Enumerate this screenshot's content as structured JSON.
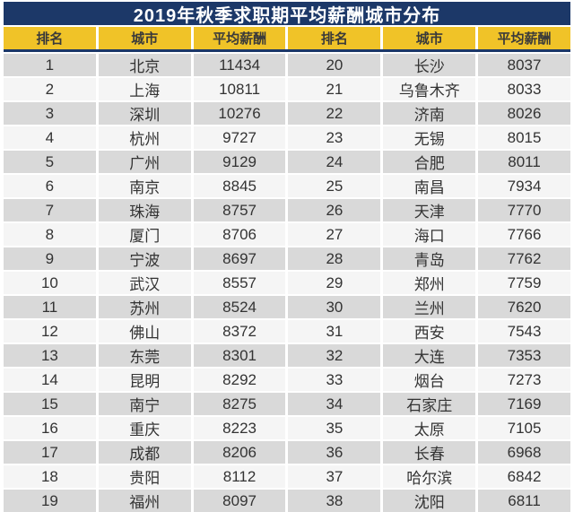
{
  "title": "2019年秋季求职期平均薪酬城市分布",
  "colors": {
    "title_bar_bg": "#1c3868",
    "title_text": "#ffffff",
    "header_bg": "#f0c328",
    "header_text": "#3a3a3a",
    "row_odd_bg": "#d9d9d9",
    "row_even_bg": "#f5f5f5",
    "grid_line": "#ffffff",
    "divider": "#1c3868",
    "cell_text": "#333333"
  },
  "table": {
    "columns": [
      "排名",
      "城市",
      "平均薪酬",
      "排名",
      "城市",
      "平均薪酬"
    ],
    "rows": [
      [
        "1",
        "北京",
        "11434",
        "20",
        "长沙",
        "8037"
      ],
      [
        "2",
        "上海",
        "10811",
        "21",
        "乌鲁木齐",
        "8033"
      ],
      [
        "3",
        "深圳",
        "10276",
        "22",
        "济南",
        "8026"
      ],
      [
        "4",
        "杭州",
        "9727",
        "23",
        "无锡",
        "8015"
      ],
      [
        "5",
        "广州",
        "9129",
        "24",
        "合肥",
        "8011"
      ],
      [
        "6",
        "南京",
        "8845",
        "25",
        "南昌",
        "7934"
      ],
      [
        "7",
        "珠海",
        "8757",
        "26",
        "天津",
        "7770"
      ],
      [
        "8",
        "厦门",
        "8706",
        "27",
        "海口",
        "7766"
      ],
      [
        "9",
        "宁波",
        "8697",
        "28",
        "青岛",
        "7762"
      ],
      [
        "10",
        "武汉",
        "8557",
        "29",
        "郑州",
        "7759"
      ],
      [
        "11",
        "苏州",
        "8524",
        "30",
        "兰州",
        "7620"
      ],
      [
        "12",
        "佛山",
        "8372",
        "31",
        "西安",
        "7543"
      ],
      [
        "13",
        "东莞",
        "8301",
        "32",
        "大连",
        "7353"
      ],
      [
        "14",
        "昆明",
        "8292",
        "33",
        "烟台",
        "7273"
      ],
      [
        "15",
        "南宁",
        "8275",
        "34",
        "石家庄",
        "7169"
      ],
      [
        "16",
        "重庆",
        "8223",
        "35",
        "太原",
        "7105"
      ],
      [
        "17",
        "成都",
        "8206",
        "36",
        "长春",
        "6968"
      ],
      [
        "18",
        "贵阳",
        "8112",
        "37",
        "哈尔滨",
        "6842"
      ],
      [
        "19",
        "福州",
        "8097",
        "38",
        "沈阳",
        "6811"
      ]
    ]
  },
  "chart_data": {
    "type": "table",
    "title": "2019年秋季求职期平均薪酬城市分布",
    "columns": [
      "排名",
      "城市",
      "平均薪酬"
    ],
    "entries": [
      {
        "rank": 1,
        "city": "北京",
        "salary": 11434
      },
      {
        "rank": 2,
        "city": "上海",
        "salary": 10811
      },
      {
        "rank": 3,
        "city": "深圳",
        "salary": 10276
      },
      {
        "rank": 4,
        "city": "杭州",
        "salary": 9727
      },
      {
        "rank": 5,
        "city": "广州",
        "salary": 9129
      },
      {
        "rank": 6,
        "city": "南京",
        "salary": 8845
      },
      {
        "rank": 7,
        "city": "珠海",
        "salary": 8757
      },
      {
        "rank": 8,
        "city": "厦门",
        "salary": 8706
      },
      {
        "rank": 9,
        "city": "宁波",
        "salary": 8697
      },
      {
        "rank": 10,
        "city": "武汉",
        "salary": 8557
      },
      {
        "rank": 11,
        "city": "苏州",
        "salary": 8524
      },
      {
        "rank": 12,
        "city": "佛山",
        "salary": 8372
      },
      {
        "rank": 13,
        "city": "东莞",
        "salary": 8301
      },
      {
        "rank": 14,
        "city": "昆明",
        "salary": 8292
      },
      {
        "rank": 15,
        "city": "南宁",
        "salary": 8275
      },
      {
        "rank": 16,
        "city": "重庆",
        "salary": 8223
      },
      {
        "rank": 17,
        "city": "成都",
        "salary": 8206
      },
      {
        "rank": 18,
        "city": "贵阳",
        "salary": 8112
      },
      {
        "rank": 19,
        "city": "福州",
        "salary": 8097
      },
      {
        "rank": 20,
        "city": "长沙",
        "salary": 8037
      },
      {
        "rank": 21,
        "city": "乌鲁木齐",
        "salary": 8033
      },
      {
        "rank": 22,
        "city": "济南",
        "salary": 8026
      },
      {
        "rank": 23,
        "city": "无锡",
        "salary": 8015
      },
      {
        "rank": 24,
        "city": "合肥",
        "salary": 8011
      },
      {
        "rank": 25,
        "city": "南昌",
        "salary": 7934
      },
      {
        "rank": 26,
        "city": "天津",
        "salary": 7770
      },
      {
        "rank": 27,
        "city": "海口",
        "salary": 7766
      },
      {
        "rank": 28,
        "city": "青岛",
        "salary": 7762
      },
      {
        "rank": 29,
        "city": "郑州",
        "salary": 7759
      },
      {
        "rank": 30,
        "city": "兰州",
        "salary": 7620
      },
      {
        "rank": 31,
        "city": "西安",
        "salary": 7543
      },
      {
        "rank": 32,
        "city": "大连",
        "salary": 7353
      },
      {
        "rank": 33,
        "city": "烟台",
        "salary": 7273
      },
      {
        "rank": 34,
        "city": "石家庄",
        "salary": 7169
      },
      {
        "rank": 35,
        "city": "太原",
        "salary": 7105
      },
      {
        "rank": 36,
        "city": "长春",
        "salary": 6968
      },
      {
        "rank": 37,
        "city": "哈尔滨",
        "salary": 6842
      },
      {
        "rank": 38,
        "city": "沈阳",
        "salary": 6811
      }
    ]
  }
}
